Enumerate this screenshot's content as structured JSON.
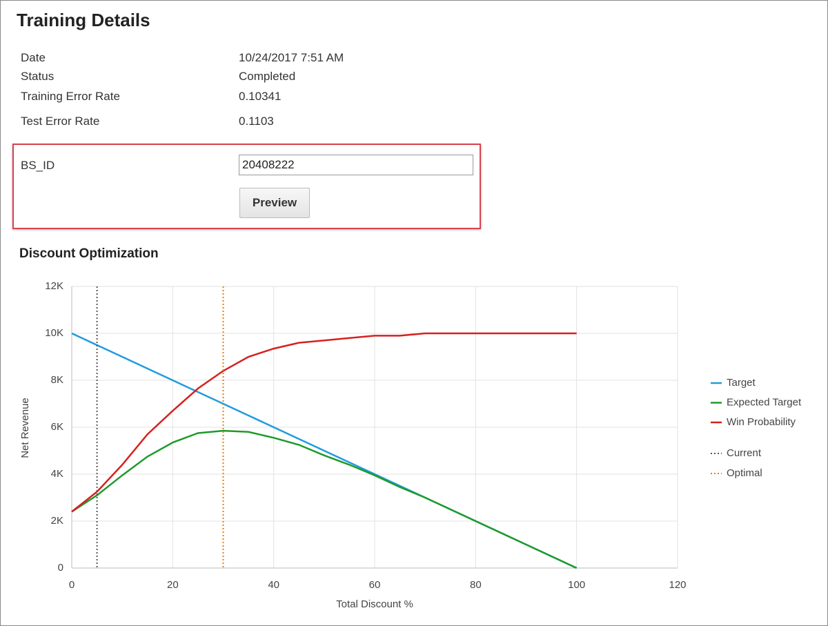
{
  "header": {
    "title": "Training Details"
  },
  "details": {
    "rows": [
      [
        "Date",
        "10/24/2017 7:51 AM"
      ],
      [
        "Status",
        "Completed"
      ],
      [
        "Training Error Rate",
        "0.10341"
      ],
      [
        "Test Error Rate",
        "0.1103"
      ]
    ]
  },
  "form": {
    "label": "BS_ID",
    "value": "20408222",
    "button": "Preview"
  },
  "chart_data": {
    "type": "line",
    "title": "Discount Optimization",
    "x_label": "Total Discount %",
    "y_label": "Net Revenue",
    "x": [
      0,
      5,
      10,
      15,
      20,
      25,
      30,
      35,
      40,
      45,
      50,
      55,
      60,
      65,
      70,
      75,
      80,
      85,
      90,
      95,
      100
    ],
    "series": [
      {
        "name": "Target",
        "color": "#1f9bde",
        "values": [
          10000,
          9500,
          9000,
          8500,
          8000,
          7500,
          7000,
          6500,
          6000,
          5500,
          5000,
          4500,
          4000,
          3500,
          3000,
          2500,
          2000,
          1500,
          1000,
          500,
          0
        ]
      },
      {
        "name": "Expected Target",
        "color": "#1e9a2a",
        "values": [
          2400,
          3100,
          3950,
          4750,
          5350,
          5750,
          5850,
          5800,
          5550,
          5250,
          4800,
          4400,
          3950,
          3450,
          3000,
          2500,
          2000,
          1500,
          1000,
          500,
          0
        ]
      },
      {
        "name": "Win Probability",
        "color": "#d62020",
        "values": [
          2400,
          3250,
          4400,
          5700,
          6700,
          7650,
          8400,
          9000,
          9350,
          9600,
          9700,
          9800,
          9900,
          9900,
          10000,
          10000,
          10000,
          10000,
          10000,
          10000,
          10000
        ]
      }
    ],
    "reference_lines": [
      {
        "name": "Current",
        "x": 5,
        "color": "#555555",
        "style": "dotted"
      },
      {
        "name": "Optimal",
        "x": 30,
        "color": "#e87b0c",
        "style": "dotted"
      }
    ],
    "xlim": [
      0,
      120
    ],
    "xticks": [
      0,
      20,
      40,
      60,
      80,
      100,
      120
    ],
    "ylim": [
      0,
      12000
    ],
    "yticks": [
      0,
      {
        "value": 2000,
        "label": "2K"
      },
      {
        "value": 4000,
        "label": "4K"
      },
      {
        "value": 6000,
        "label": "6K"
      },
      {
        "value": 8000,
        "label": "8K"
      },
      {
        "value": 10000,
        "label": "10K"
      },
      {
        "value": 12000,
        "label": "12K"
      }
    ],
    "grid": true,
    "legend": "right"
  }
}
